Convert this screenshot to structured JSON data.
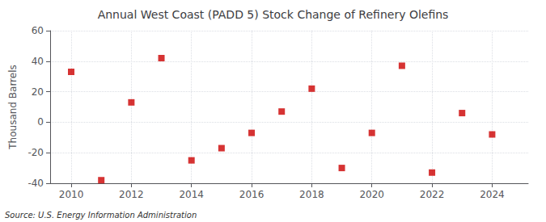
{
  "chart_data": {
    "type": "scatter",
    "title": "Annual West Coast (PADD 5) Stock Change of Refinery Olefins",
    "ylabel": "Thousand Barrels",
    "source": "Source: U.S. Energy Information Administration",
    "x": [
      2010,
      2011,
      2012,
      2013,
      2014,
      2015,
      2016,
      2017,
      2018,
      2019,
      2020,
      2021,
      2022,
      2023,
      2024
    ],
    "values": [
      33,
      -38,
      13,
      42,
      -25,
      -17,
      -7,
      7,
      22,
      -30,
      -7,
      37,
      -33,
      6,
      -8
    ],
    "color": "#cc0000",
    "marker": "square",
    "xlim": [
      2009.3,
      2025.2
    ],
    "xticks": [
      2010,
      2012,
      2014,
      2016,
      2018,
      2020,
      2022,
      2024
    ],
    "ylim": [
      -40,
      60
    ],
    "yticks": [
      -40,
      -20,
      0,
      20,
      40,
      60
    ],
    "grid": true
  }
}
